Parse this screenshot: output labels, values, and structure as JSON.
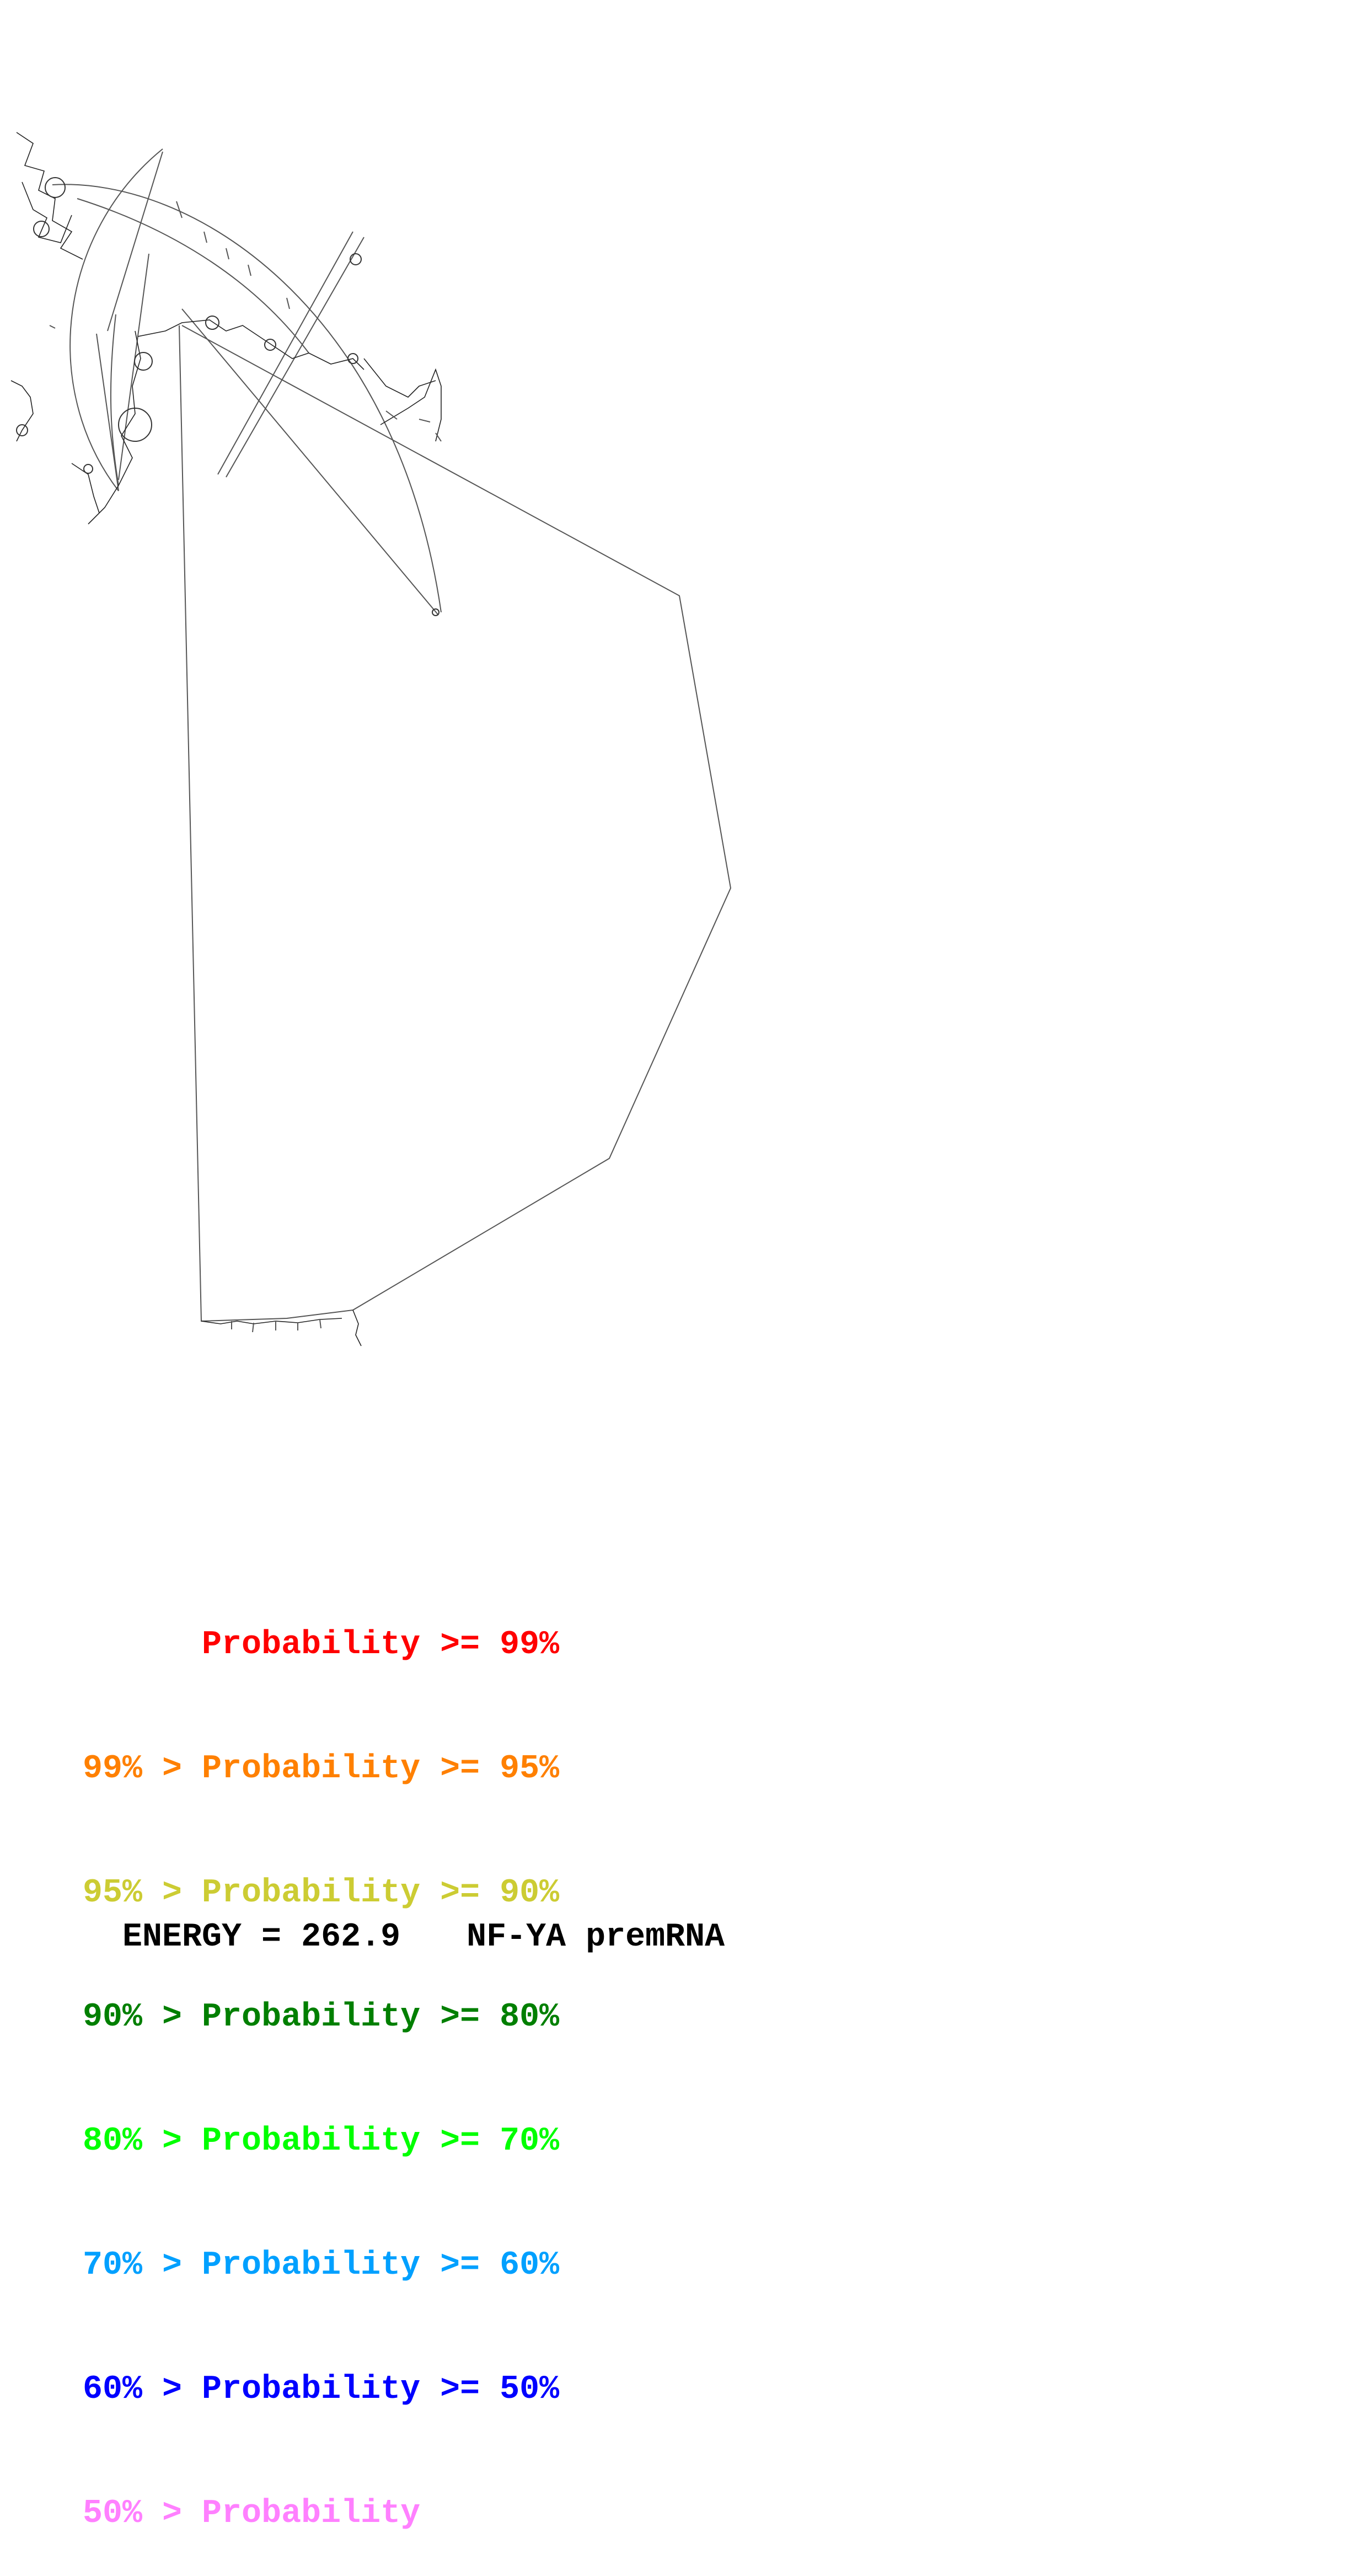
{
  "legend": [
    {
      "prefix": "",
      "label": "Probability",
      "suffix": ">= 99%",
      "color": "#ff0000"
    },
    {
      "prefix": "99% > ",
      "label": "Probability",
      "suffix": ">= 95%",
      "color": "#ff8000"
    },
    {
      "prefix": "95% > ",
      "label": "Probability",
      "suffix": ">= 90%",
      "color": "#cccc33"
    },
    {
      "prefix": "90% > ",
      "label": "Probability",
      "suffix": ">= 80%",
      "color": "#007f00"
    },
    {
      "prefix": "80% > ",
      "label": "Probability",
      "suffix": ">= 70%",
      "color": "#00ff00"
    },
    {
      "prefix": "70% > ",
      "label": "Probability",
      "suffix": ">= 60%",
      "color": "#00a0ff"
    },
    {
      "prefix": "60% > ",
      "label": "Probability",
      "suffix": ">= 50%",
      "color": "#0000ff"
    },
    {
      "prefix": "50% > ",
      "label": "Probability",
      "suffix": "",
      "color": "#ff80ff"
    }
  ],
  "footer": {
    "energy": "ENERGY = 262.9",
    "name": "NF-YA premRNA"
  }
}
